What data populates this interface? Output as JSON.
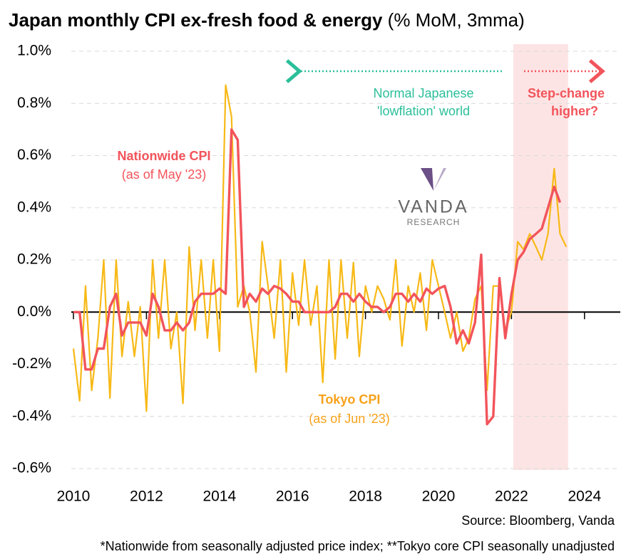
{
  "chart_data": {
    "type": "line",
    "title": "Japan monthly CPI ex-fresh food & energy",
    "title_unit": "(% MoM, 3mma)",
    "source": "Source: Bloomberg, Vanda",
    "footnote": "*Nationwide from seasonally adjusted price index; **Tokyo core CPI seasonally unadjusted",
    "logo": {
      "name": "VANDA",
      "sub": "RESEARCH"
    },
    "annotations": {
      "lowflation": [
        "Normal Japanese",
        "'lowflation' world"
      ],
      "step_change": [
        "Step-change",
        "higher?"
      ],
      "nationwide": [
        "Nationwide CPI",
        "(as of May '23)"
      ],
      "tokyo": [
        "Tokyo CPI",
        "(as of Jun '23)"
      ]
    },
    "highlight_range": [
      2022.05,
      2023.55
    ],
    "xlim": [
      2010,
      2025
    ],
    "xticks": [
      2010,
      2012,
      2014,
      2016,
      2018,
      2020,
      2022,
      2024
    ],
    "ylim": [
      -0.6,
      1.0
    ],
    "yticks": [
      {
        "value": 1.0,
        "label": "1.0%"
      },
      {
        "value": 0.8,
        "label": "0.8%"
      },
      {
        "value": 0.6,
        "label": "0.6%"
      },
      {
        "value": 0.4,
        "label": "0.4%"
      },
      {
        "value": 0.2,
        "label": "0.2%"
      },
      {
        "value": 0,
        "label": "0.0%"
      },
      {
        "value": -0.2,
        "label": "-0.2%"
      },
      {
        "value": -0.4,
        "label": "-0.4%"
      },
      {
        "value": -0.6,
        "label": "-0.6%"
      }
    ],
    "grid": true,
    "x": [
      2010,
      2010.17,
      2010.33,
      2010.5,
      2010.67,
      2010.83,
      2011,
      2011.17,
      2011.33,
      2011.5,
      2011.67,
      2011.83,
      2012,
      2012.17,
      2012.33,
      2012.5,
      2012.67,
      2012.83,
      2013,
      2013.17,
      2013.33,
      2013.5,
      2013.67,
      2013.83,
      2014,
      2014.17,
      2014.33,
      2014.5,
      2014.67,
      2014.83,
      2015,
      2015.17,
      2015.33,
      2015.5,
      2015.67,
      2015.83,
      2016,
      2016.17,
      2016.33,
      2016.5,
      2016.67,
      2016.83,
      2017,
      2017.17,
      2017.33,
      2017.5,
      2017.67,
      2017.83,
      2018,
      2018.17,
      2018.33,
      2018.5,
      2018.67,
      2018.83,
      2019,
      2019.17,
      2019.33,
      2019.5,
      2019.67,
      2019.83,
      2020,
      2020.17,
      2020.33,
      2020.5,
      2020.67,
      2020.83,
      2021,
      2021.17,
      2021.33,
      2021.5,
      2021.67,
      2021.83,
      2022,
      2022.17,
      2022.33,
      2022.5,
      2022.67,
      2022.83,
      2023,
      2023.17,
      2023.33,
      2023.5
    ],
    "series": [
      {
        "name": "Tokyo CPI",
        "color": "#f7b916",
        "width": 2.2,
        "values": [
          -0.14,
          -0.34,
          0.1,
          -0.3,
          -0.1,
          0.2,
          -0.33,
          0.2,
          -0.17,
          0.04,
          -0.17,
          0.02,
          -0.38,
          0.2,
          -0.1,
          0.2,
          -0.14,
          0.0,
          -0.35,
          0.25,
          -0.07,
          0.2,
          -0.1,
          0.2,
          -0.15,
          0.87,
          0.75,
          0.02,
          0.1,
          0.0,
          -0.23,
          0.27,
          0.1,
          -0.1,
          0.2,
          -0.23,
          0.15,
          -0.05,
          0.2,
          -0.05,
          0.1,
          -0.27,
          0.2,
          -0.18,
          0.2,
          -0.1,
          0.19,
          -0.17,
          0.1,
          0.0,
          0.1,
          0.05,
          -0.03,
          0.2,
          -0.13,
          0.1,
          0.0,
          0.15,
          -0.07,
          0.2,
          0.1,
          0.0,
          -0.1,
          0.0,
          -0.15,
          -0.1,
          0.05,
          0.1,
          -0.3,
          0.1,
          0.1,
          -0.07,
          0.0,
          0.27,
          0.24,
          0.3,
          0.25,
          0.2,
          0.3,
          0.55,
          0.3,
          0.25
        ]
      },
      {
        "name": "Nationwide CPI",
        "color": "#f2545b",
        "width": 3.4,
        "values": [
          0.0,
          0.0,
          -0.22,
          -0.22,
          -0.14,
          -0.14,
          0.02,
          0.07,
          -0.09,
          -0.04,
          -0.04,
          -0.04,
          -0.09,
          0.07,
          0.02,
          -0.07,
          -0.07,
          -0.04,
          -0.07,
          -0.04,
          0.04,
          0.07,
          0.07,
          0.07,
          0.09,
          0.07,
          0.7,
          0.66,
          0.02,
          0.07,
          0.04,
          0.09,
          0.07,
          0.1,
          0.09,
          0.07,
          0.04,
          0.04,
          0.0,
          0.0,
          0.0,
          0.0,
          0.0,
          0.02,
          0.07,
          0.07,
          0.04,
          0.07,
          0.04,
          0.02,
          0.02,
          0.0,
          0.02,
          0.07,
          0.07,
          0.04,
          0.07,
          0.04,
          0.09,
          0.07,
          0.09,
          0.1,
          0.02,
          -0.12,
          -0.07,
          -0.12,
          -0.04,
          0.22,
          -0.43,
          -0.4,
          0.13,
          -0.1,
          0.07,
          0.2,
          0.23,
          0.28,
          0.3,
          0.32,
          0.4,
          0.48,
          0.42,
          null
        ]
      }
    ]
  }
}
